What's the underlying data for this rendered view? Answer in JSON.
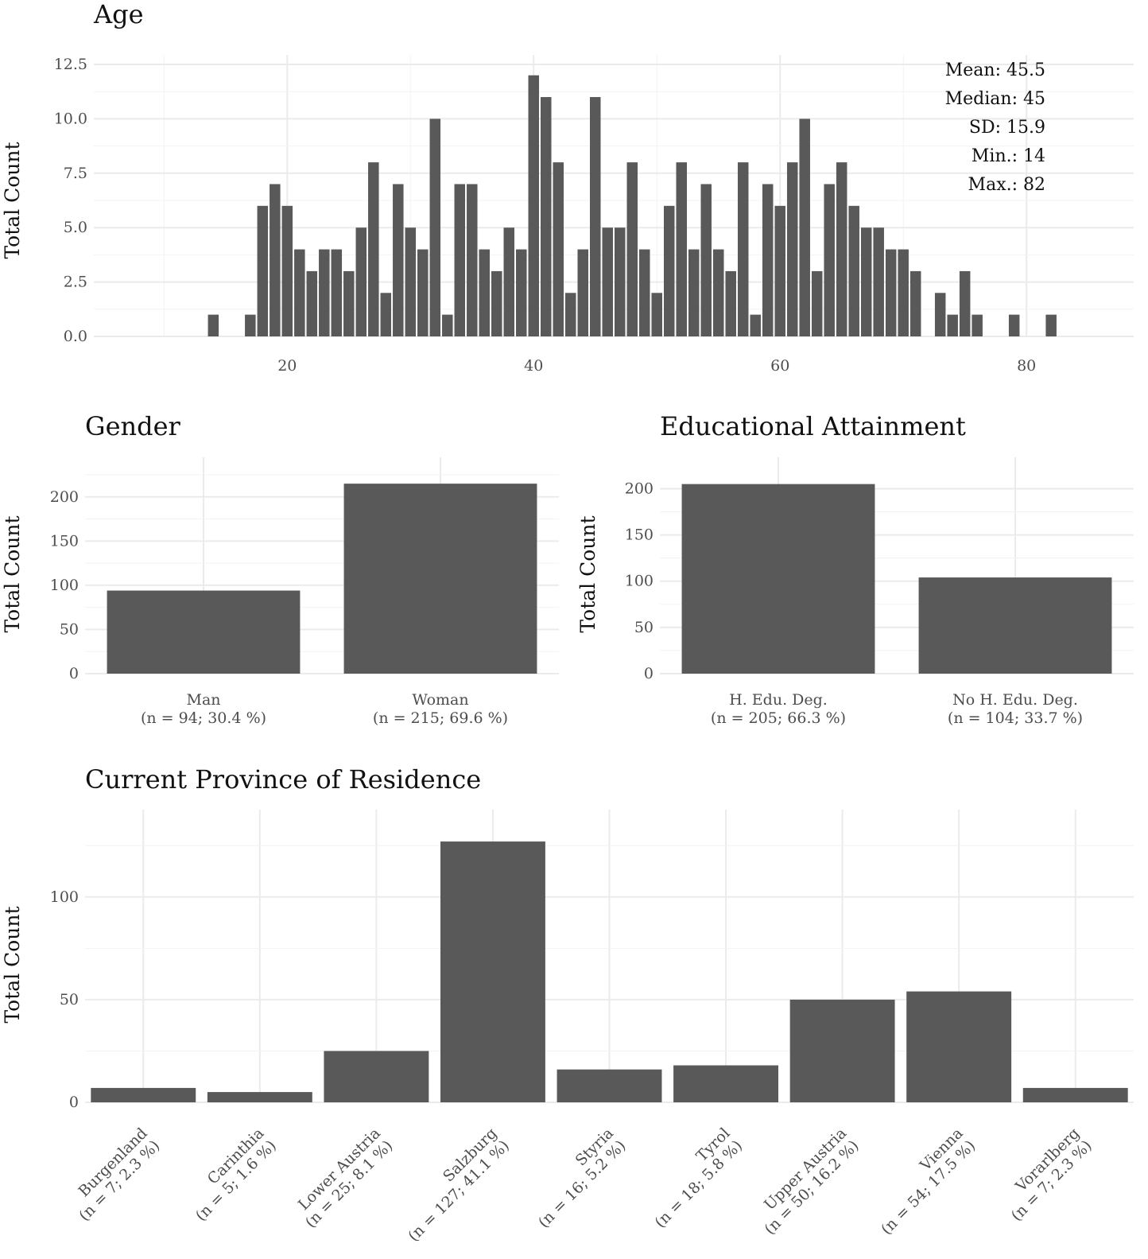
{
  "chart_data": [
    {
      "id": "age",
      "type": "bar",
      "title": "Age",
      "xlabel": "",
      "ylabel": "Total Count",
      "x": [
        14,
        15,
        16,
        17,
        18,
        19,
        20,
        21,
        22,
        23,
        24,
        25,
        26,
        27,
        28,
        29,
        30,
        31,
        32,
        33,
        34,
        35,
        36,
        37,
        38,
        39,
        40,
        41,
        42,
        43,
        44,
        45,
        46,
        47,
        48,
        49,
        50,
        51,
        52,
        53,
        54,
        55,
        56,
        57,
        58,
        59,
        60,
        61,
        62,
        63,
        64,
        65,
        66,
        67,
        68,
        69,
        70,
        71,
        72,
        73,
        74,
        75,
        76,
        77,
        78,
        79,
        80,
        81,
        82
      ],
      "values": [
        1,
        0,
        0,
        1,
        6,
        7,
        6,
        4,
        3,
        4,
        4,
        3,
        5,
        8,
        2,
        7,
        5,
        4,
        10,
        1,
        7,
        7,
        4,
        3,
        5,
        4,
        12,
        11,
        8,
        2,
        4,
        11,
        5,
        5,
        8,
        4,
        2,
        6,
        8,
        4,
        7,
        4,
        3,
        8,
        1,
        7,
        6,
        8,
        10,
        3,
        7,
        8,
        6,
        5,
        5,
        4,
        4,
        3,
        0,
        2,
        1,
        3,
        1,
        0,
        0,
        1,
        0,
        0,
        1
      ],
      "xlim": [
        4.3,
        88.7
      ],
      "ylim": [
        0,
        12.5
      ],
      "xticks": [
        20,
        40,
        60,
        80
      ],
      "xtick_labels": [
        "20",
        "40",
        "60",
        "80"
      ],
      "yticks": [
        0,
        2.5,
        5,
        7.5,
        10,
        12.5
      ],
      "ytick_labels": [
        "0.0",
        "2.5",
        "5.0",
        "7.5",
        "10.0",
        "12.5"
      ],
      "annotations": [
        "Mean: 45.5",
        "Median: 45",
        "SD: 15.9",
        "Min.: 14",
        "Max.: 82"
      ]
    },
    {
      "id": "gender",
      "type": "bar",
      "title": "Gender",
      "xlabel": "",
      "ylabel": "Total Count",
      "categories": [
        [
          "Man",
          "(n = 94; 30.4 %)"
        ],
        [
          "Woman",
          "(n = 215; 69.6 %)"
        ]
      ],
      "values": [
        94,
        215
      ],
      "ylim": [
        0,
        225
      ],
      "yticks": [
        0,
        50,
        100,
        150,
        200
      ],
      "ytick_labels": [
        "0",
        "50",
        "100",
        "150",
        "200"
      ]
    },
    {
      "id": "education",
      "type": "bar",
      "title": "Educational Attainment",
      "xlabel": "",
      "ylabel": "Total Count",
      "categories": [
        [
          "H. Edu. Deg.",
          "(n = 205; 66.3 %)"
        ],
        [
          "No H. Edu. Deg.",
          "(n = 104; 33.7 %)"
        ]
      ],
      "values": [
        205,
        104
      ],
      "ylim": [
        0,
        215
      ],
      "yticks": [
        0,
        50,
        100,
        150,
        200
      ],
      "ytick_labels": [
        "0",
        "50",
        "100",
        "150",
        "200"
      ]
    },
    {
      "id": "province",
      "type": "bar",
      "title": "Current Province of Residence",
      "xlabel": "",
      "ylabel": "Total Count",
      "categories": [
        [
          "Burgenland",
          "(n = 7; 2.3 %)"
        ],
        [
          "Carinthia",
          "(n = 5; 1.6 %)"
        ],
        [
          "Lower Austria",
          "(n = 25; 8.1 %)"
        ],
        [
          "Salzburg",
          "(n = 127; 41.1 %)"
        ],
        [
          "Styria",
          "(n = 16; 5.2 %)"
        ],
        [
          "Tyrol",
          "(n = 18; 5.8 %)"
        ],
        [
          "Upper Austria",
          "(n = 50; 16.2 %)"
        ],
        [
          "Vienna",
          "(n = 54; 17.5 %)"
        ],
        [
          "Vorarlberg",
          "(n = 7; 2.3 %)"
        ]
      ],
      "values": [
        7,
        5,
        25,
        127,
        16,
        18,
        50,
        54,
        7
      ],
      "ylim": [
        0,
        134
      ],
      "yticks": [
        0,
        50,
        100
      ],
      "ytick_labels": [
        "0",
        "50",
        "100"
      ]
    }
  ]
}
